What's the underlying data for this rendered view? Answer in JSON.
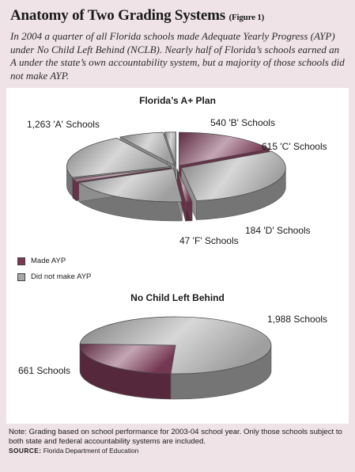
{
  "header": {
    "title": "Anatomy of Two Grading Systems",
    "figure_tag": "(Figure 1)",
    "intro": "In 2004 a quarter of all Florida schools made Adequate Yearly Progress (AYP) under No Child Left Behind (NCLB). Nearly half of Florida’s schools earned an A under the state’s own accountability system, but a majority of those schools did not make AYP."
  },
  "legend": {
    "made": "Made AYP",
    "not_made": "Did not make AYP"
  },
  "colors": {
    "made_ayp": "#7a3a55",
    "did_not_make_ayp": "#a7a7a7",
    "panel": "#ffffff",
    "page": "#efe3e8"
  },
  "chart_data": [
    {
      "type": "pie",
      "title": "Florida’s A+ Plan",
      "slices": [
        {
          "label": "1,263 'A' Schools",
          "value": 1263
        },
        {
          "label": "540 'B' Schools",
          "value": 540
        },
        {
          "label": "615 'C' Schools",
          "value": 615
        },
        {
          "label": "184 'D' Schools",
          "value": 184
        },
        {
          "label": "47 'F' Schools",
          "value": 47
        }
      ],
      "made_ayp_fraction": [
        0.35,
        0.05,
        0.07,
        0.0,
        0.0
      ],
      "exploded": true,
      "style": "3d"
    },
    {
      "type": "pie",
      "title": "No Child Left Behind",
      "slices": [
        {
          "label": "661 Schools",
          "value": 661,
          "status": "Made AYP"
        },
        {
          "label": "1,988 Schools",
          "value": 1988,
          "status": "Did not make AYP"
        }
      ],
      "style": "3d"
    }
  ],
  "footer": {
    "note": "Note: Grading based on school performance for 2003-04 school year. Only those schools subject to both state and federal accountability systems are included.",
    "source_label": "SOURCE:",
    "source": "Florida Department of Education"
  }
}
